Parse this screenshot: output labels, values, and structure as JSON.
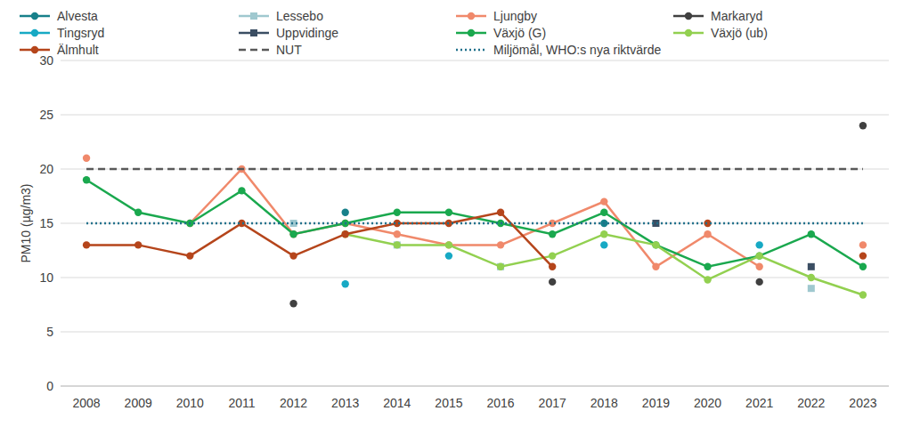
{
  "chart_data": {
    "type": "line",
    "y_label": "PM10 (µg/m3)",
    "categories": [
      "2008",
      "2009",
      "2010",
      "2011",
      "2012",
      "2013",
      "2014",
      "2015",
      "2016",
      "2017",
      "2018",
      "2019",
      "2020",
      "2021",
      "2022",
      "2023"
    ],
    "ylim": [
      0,
      30
    ],
    "yticks": [
      0,
      5,
      10,
      15,
      20,
      25,
      30
    ],
    "grid": true,
    "legend": "top",
    "series": [
      {
        "name": "Alvesta",
        "color": "#17808a",
        "marker": "circle",
        "line_style": "solid",
        "values": [
          null,
          null,
          null,
          null,
          null,
          16,
          null,
          null,
          null,
          null,
          15,
          null,
          null,
          null,
          null,
          null
        ]
      },
      {
        "name": "Lessebo",
        "color": "#9fc8cf",
        "marker": "square",
        "line_style": "solid",
        "values": [
          null,
          null,
          null,
          null,
          15,
          null,
          13,
          null,
          11,
          null,
          null,
          null,
          null,
          null,
          9,
          null
        ]
      },
      {
        "name": "Ljungby",
        "color": "#f0896b",
        "marker": "circle",
        "line_style": "solid",
        "values": [
          21,
          null,
          15,
          20,
          14,
          15,
          14,
          13,
          13,
          15,
          17,
          11,
          14,
          11,
          null,
          13
        ]
      },
      {
        "name": "Markaryd",
        "color": "#404040",
        "marker": "circle",
        "line_style": "solid",
        "values": [
          null,
          null,
          null,
          null,
          7.6,
          null,
          null,
          null,
          null,
          9.6,
          null,
          null,
          null,
          9.6,
          null,
          24
        ]
      },
      {
        "name": "Tingsryd",
        "color": "#17a9c4",
        "marker": "circle",
        "line_style": "solid",
        "values": [
          null,
          null,
          null,
          null,
          null,
          9.4,
          null,
          12,
          null,
          null,
          13,
          null,
          null,
          13,
          null,
          null
        ]
      },
      {
        "name": "Uppvidinge",
        "color": "#3b4e63",
        "marker": "square",
        "line_style": "solid",
        "values": [
          null,
          null,
          null,
          null,
          null,
          null,
          null,
          null,
          null,
          null,
          null,
          15,
          null,
          null,
          11,
          null
        ]
      },
      {
        "name": "Växjö (G)",
        "color": "#1aa84e",
        "marker": "circle",
        "line_style": "solid",
        "values": [
          19,
          16,
          15,
          18,
          14,
          15,
          16,
          16,
          15,
          14,
          16,
          13,
          11,
          12,
          14,
          11
        ]
      },
      {
        "name": "Växjö (ub)",
        "color": "#92d050",
        "marker": "circle",
        "line_style": "solid",
        "values": [
          null,
          null,
          null,
          null,
          null,
          14,
          13,
          13,
          11,
          12,
          14,
          13,
          9.8,
          12,
          10,
          8.4
        ]
      },
      {
        "name": "Älmhult",
        "color": "#b5451b",
        "marker": "circle",
        "line_style": "solid",
        "values": [
          13,
          13,
          12,
          15,
          12,
          14,
          15,
          15,
          16,
          11,
          null,
          null,
          15,
          null,
          null,
          12
        ]
      },
      {
        "name": "NUT",
        "color": "#595959",
        "marker": "none",
        "line_style": "dashed",
        "values": [
          20,
          20,
          20,
          20,
          20,
          20,
          20,
          20,
          20,
          20,
          20,
          20,
          20,
          20,
          20,
          20
        ]
      },
      {
        "name": "Miljömål, WHO:s nya riktvärde",
        "color": "#1f6f8b",
        "marker": "none",
        "line_style": "dotted",
        "values": [
          15,
          15,
          15,
          15,
          15,
          15,
          15,
          15,
          15,
          15,
          15,
          15,
          15,
          15,
          15,
          15
        ]
      }
    ]
  }
}
